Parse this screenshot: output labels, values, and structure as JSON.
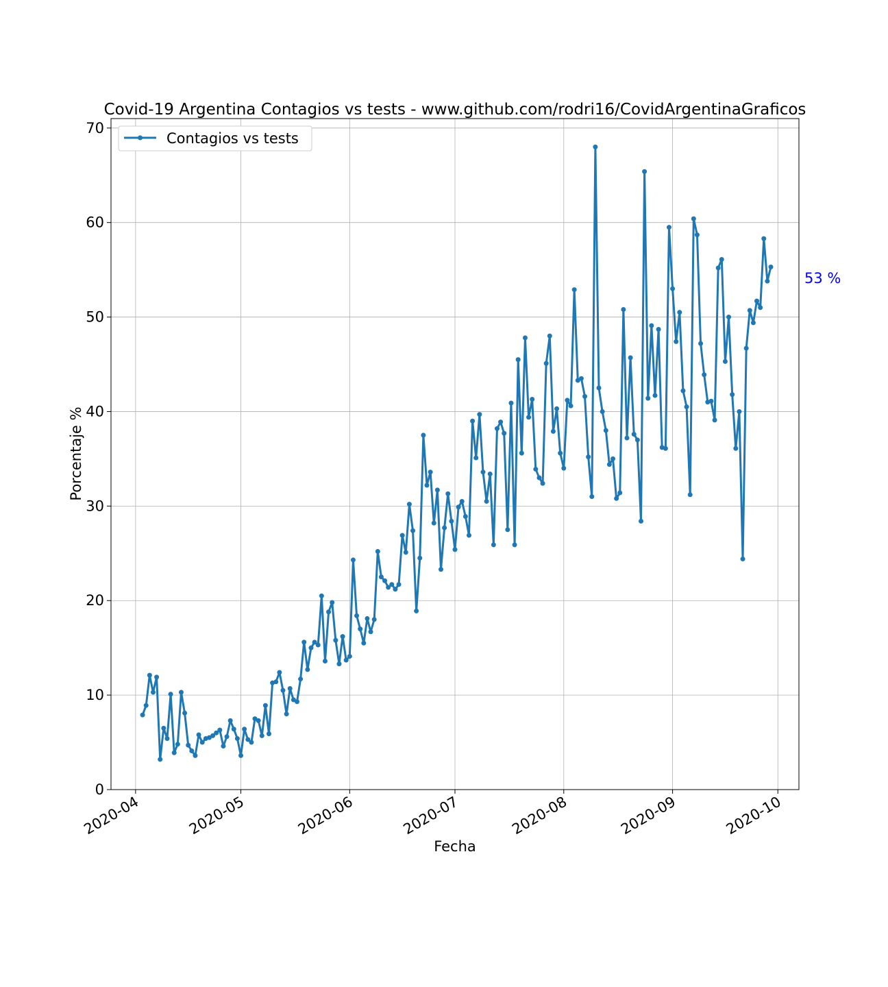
{
  "chart_data": {
    "type": "line",
    "title": "Covid-19 Argentina Contagios vs tests - www.github.com/rodri16/CovidArgentinaGraficos",
    "xlabel": "Fecha",
    "ylabel": "Porcentaje %",
    "ylim": [
      0,
      71
    ],
    "yticks": [
      0,
      10,
      20,
      30,
      40,
      50,
      60,
      70
    ],
    "xticks": [
      "2020-04",
      "2020-05",
      "2020-06",
      "2020-07",
      "2020-08",
      "2020-09",
      "2020-10"
    ],
    "xtick_dates": [
      "2020-04-01",
      "2020-05-01",
      "2020-06-01",
      "2020-07-01",
      "2020-08-01",
      "2020-09-01",
      "2020-10-01"
    ],
    "xlim": [
      "2020-03-25",
      "2020-10-07"
    ],
    "grid": true,
    "legend_position": "top-left",
    "line_color": "#1f77b4",
    "annotation": {
      "text": "53 %",
      "color": "#0000ff"
    },
    "series": [
      {
        "name": "Contagios vs tests",
        "start_date": "2020-04-03",
        "values": [
          7.9,
          8.9,
          12.1,
          10.3,
          11.9,
          3.2,
          6.5,
          5.4,
          10.1,
          3.9,
          4.8,
          10.3,
          8.1,
          4.7,
          4.1,
          3.6,
          5.8,
          5.0,
          5.4,
          5.5,
          5.7,
          6.0,
          6.3,
          4.6,
          5.6,
          7.3,
          6.4,
          5.4,
          3.6,
          6.4,
          5.3,
          5.0,
          7.5,
          7.3,
          5.7,
          8.9,
          5.9,
          11.3,
          11.4,
          12.4,
          10.5,
          8.0,
          10.7,
          9.5,
          9.3,
          11.7,
          15.6,
          12.7,
          15.0,
          15.6,
          15.3,
          20.5,
          13.6,
          18.8,
          19.8,
          15.8,
          13.3,
          16.2,
          13.7,
          14.1,
          24.3,
          18.4,
          17.0,
          15.5,
          18.1,
          16.7,
          18.0,
          25.2,
          22.5,
          22.1,
          21.4,
          21.7,
          21.2,
          21.7,
          26.9,
          25.1,
          30.2,
          27.4,
          18.9,
          24.5,
          37.5,
          32.2,
          33.6,
          28.2,
          31.7,
          23.3,
          27.7,
          31.3,
          28.4,
          25.4,
          29.9,
          30.5,
          28.9,
          26.9,
          39.0,
          35.1,
          39.7,
          33.6,
          30.5,
          33.4,
          25.9,
          38.2,
          38.9,
          37.7,
          27.5,
          40.9,
          25.9,
          45.5,
          35.6,
          47.8,
          39.4,
          41.3,
          33.9,
          33.0,
          32.4,
          45.1,
          48.0,
          37.9,
          40.3,
          35.6,
          34.0,
          41.2,
          40.6,
          52.9,
          43.3,
          43.5,
          41.6,
          35.2,
          31.0,
          68.0,
          42.5,
          40.0,
          38.0,
          34.4,
          35.0,
          30.8,
          31.4,
          50.8,
          37.2,
          45.7,
          37.6,
          37.0,
          28.4,
          65.4,
          41.4,
          49.1,
          41.7,
          48.7,
          36.2,
          36.1,
          59.5,
          53.0,
          47.4,
          50.5,
          42.2,
          40.5,
          31.2,
          60.4,
          58.7,
          47.2,
          43.9,
          41.0,
          41.1,
          39.1,
          55.2,
          56.1,
          45.3,
          50.0,
          41.8,
          36.1,
          40.0,
          24.4,
          46.7,
          50.7,
          49.4,
          51.7,
          51.0,
          58.3,
          53.8,
          55.3
        ]
      }
    ]
  }
}
